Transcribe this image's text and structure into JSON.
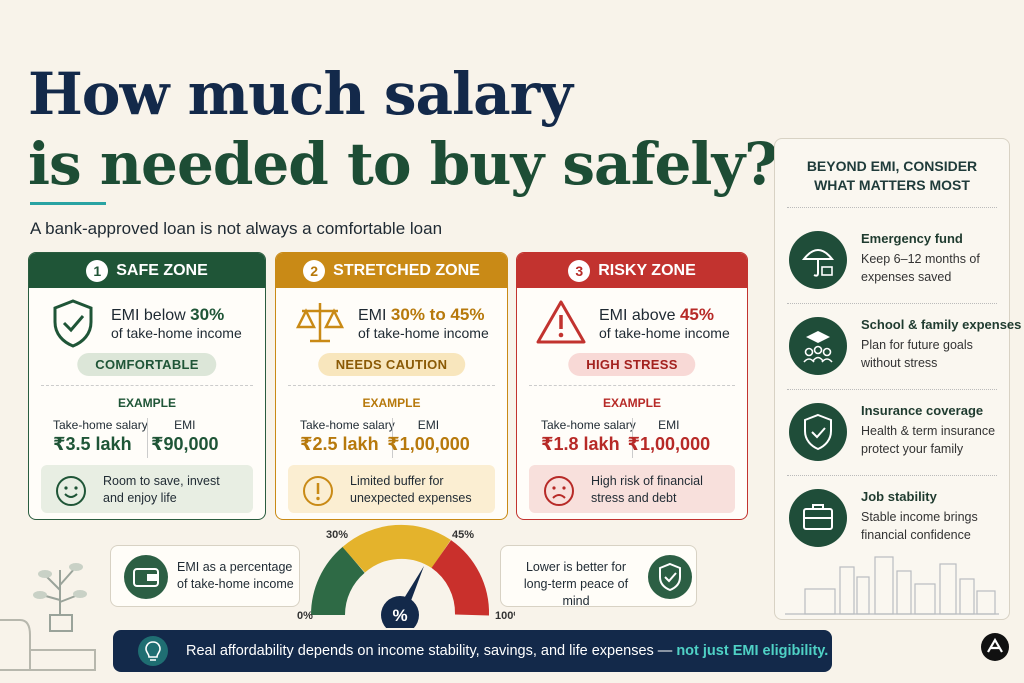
{
  "title": {
    "line1": "How much salary",
    "line2": "is needed to buy safely?"
  },
  "subtitle": "A bank-approved loan is not always a comfortable loan",
  "zones": [
    {
      "number": "1",
      "name": "SAFE ZONE",
      "emi_prefix": "EMI below",
      "emi_range": "30%",
      "emi_sub": "of take-home income",
      "badge": "COMFORTABLE",
      "example_label": "EXAMPLE",
      "salary_label": "Take-home salary",
      "salary": "₹3.5 lakh",
      "emi_label": "EMI",
      "emi_value": "₹90,000",
      "note": "Room to save, invest and enjoy life"
    },
    {
      "number": "2",
      "name": "STRETCHED ZONE",
      "emi_prefix": "EMI",
      "emi_range": "30% to 45%",
      "emi_sub": "of take-home income",
      "badge": "NEEDS CAUTION",
      "example_label": "EXAMPLE",
      "salary_label": "Take-home salary",
      "salary": "₹2.5 lakh",
      "emi_label": "EMI",
      "emi_value": "₹1,00,000",
      "note": "Limited buffer for unexpected expenses"
    },
    {
      "number": "3",
      "name": "RISKY ZONE",
      "emi_prefix": "EMI above",
      "emi_range": "45%",
      "emi_sub": "of take-home income",
      "badge": "HIGH STRESS",
      "example_label": "EXAMPLE",
      "salary_label": "Take-home salary",
      "salary": "₹1.8 lakh",
      "emi_label": "EMI",
      "emi_value": "₹1,00,000",
      "note": "High risk of financial stress and debt"
    }
  ],
  "gauge": {
    "left_note": "EMI as a percentage of take-home income",
    "labels": [
      "0%",
      "30%",
      "45%",
      "100%"
    ],
    "center": "%",
    "right_note": "Lower is better for long-term peace of mind"
  },
  "banner": {
    "text": "Real affordability depends on income stability, savings, and life expenses —",
    "highlight": "not just EMI eligibility."
  },
  "sidebar": {
    "title_line1": "BEYOND EMI, CONSIDER",
    "title_line2": "WHAT MATTERS MOST",
    "items": [
      {
        "title": "Emergency fund",
        "text": "Keep 6–12 months of expenses saved"
      },
      {
        "title": "School & family expenses",
        "text": "Plan for future goals without stress"
      },
      {
        "title": "Insurance coverage",
        "text": "Health & term insurance protect your family"
      },
      {
        "title": "Job stability",
        "text": "Stable income brings financial confidence"
      }
    ]
  }
}
